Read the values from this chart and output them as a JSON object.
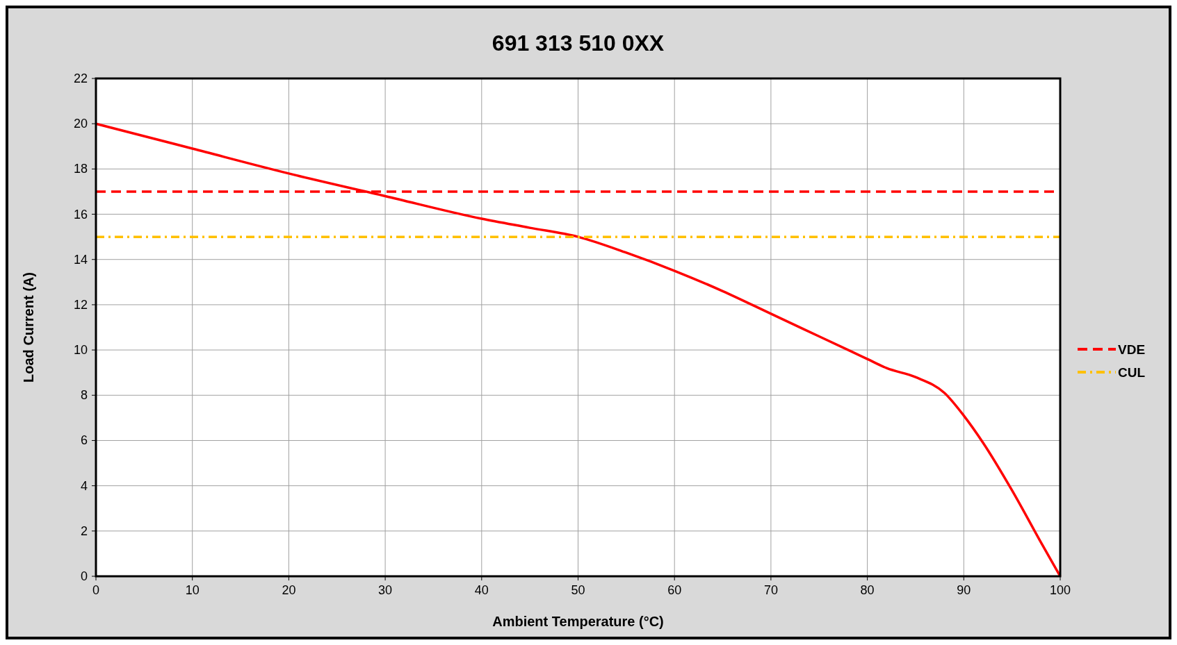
{
  "chart_data": {
    "type": "line",
    "title": "691 313 510 0XX",
    "xlabel": "Ambient Temperature (°C)",
    "ylabel": "Load Current (A)",
    "xlim": [
      0,
      100
    ],
    "xticks": [
      0,
      10,
      20,
      30,
      40,
      50,
      60,
      70,
      80,
      90,
      100
    ],
    "ylim": [
      0,
      22
    ],
    "yticks": [
      0,
      2,
      4,
      6,
      8,
      10,
      12,
      14,
      16,
      18,
      20,
      22
    ],
    "grid": true,
    "legend": "right",
    "series": [
      {
        "color": "#ff0000",
        "line_style": "solid",
        "x": [
          0,
          10,
          20,
          30,
          40,
          45,
          50,
          55,
          60,
          65,
          70,
          75,
          80,
          82,
          85,
          88,
          90,
          92,
          95,
          98,
          100
        ],
        "values": [
          20,
          18.9,
          17.8,
          16.8,
          15.8,
          15.4,
          15,
          14.3,
          13.5,
          12.6,
          11.6,
          10.6,
          9.6,
          9.2,
          8.8,
          8.1,
          7.1,
          5.9,
          3.8,
          1.5,
          0
        ]
      },
      {
        "name": "VDE",
        "color": "#ff0000",
        "line_style": "dashed",
        "x": [
          0,
          100
        ],
        "values": [
          17,
          17
        ]
      },
      {
        "name": "CUL",
        "color": "#ffc000",
        "line_style": "dashdot",
        "x": [
          0,
          100
        ],
        "values": [
          15,
          15
        ]
      }
    ]
  }
}
